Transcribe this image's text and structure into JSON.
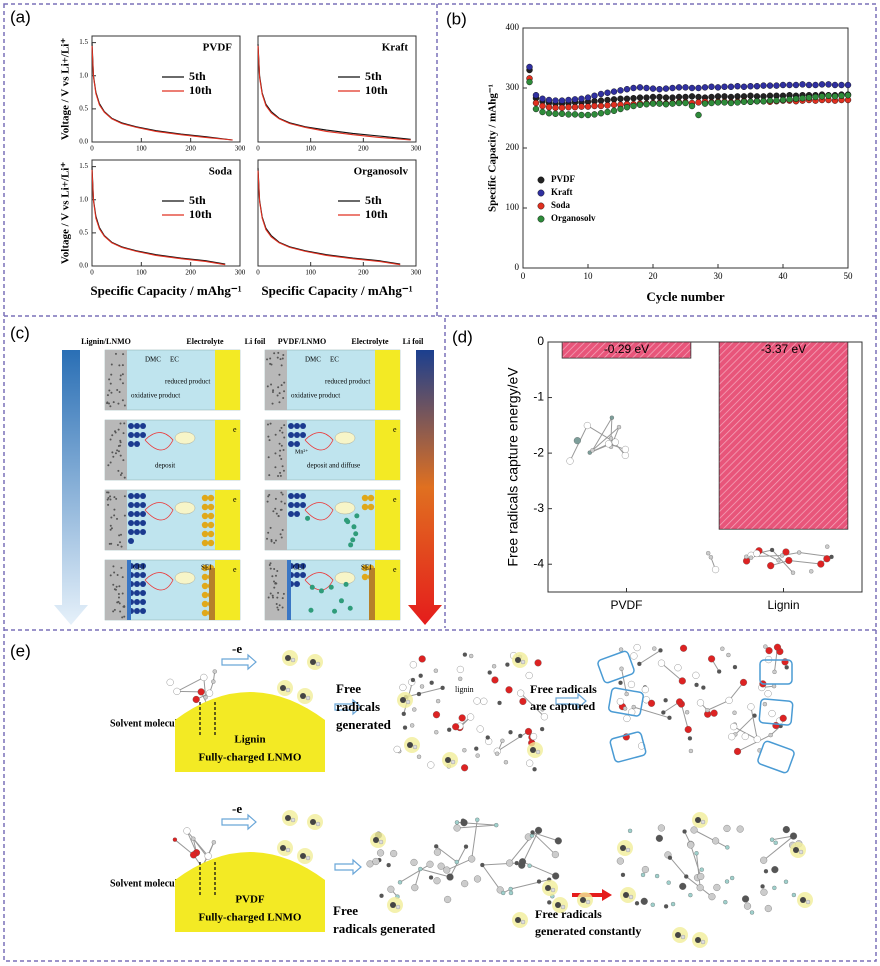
{
  "panel_labels": [
    "(a)",
    "(b)",
    "(c)",
    "(d)",
    "(e)"
  ],
  "chart_data": [
    {
      "type": "line",
      "title": "PVDF",
      "x": [
        0,
        3,
        8,
        15,
        25,
        40,
        60,
        90,
        130,
        180,
        230,
        285
      ],
      "series": [
        {
          "name": "5th",
          "color": "#111111",
          "values": [
            1.5,
            1.0,
            0.75,
            0.58,
            0.46,
            0.36,
            0.29,
            0.23,
            0.17,
            0.12,
            0.08,
            0.03
          ]
        },
        {
          "name": "10th",
          "color": "#e03020",
          "values": [
            1.45,
            0.98,
            0.73,
            0.56,
            0.45,
            0.35,
            0.28,
            0.22,
            0.16,
            0.11,
            0.07,
            0.03
          ]
        }
      ],
      "xlim": [
        0,
        300
      ],
      "ylim": [
        0,
        1.6
      ],
      "xticks": [
        0,
        100,
        200,
        300
      ],
      "yticks": [
        {
          "value": 0,
          "label": "0.0"
        },
        {
          "value": 0.5,
          "label": "0.5"
        },
        {
          "value": 1,
          "label": "1.0"
        },
        {
          "value": 1.5,
          "label": "1.5"
        }
      ],
      "ylabel": "Voltage / V vs Li+/Li⁺",
      "legend": "center right"
    },
    {
      "type": "line",
      "title": "Kraft",
      "x": [
        0,
        3,
        8,
        15,
        25,
        40,
        60,
        90,
        130,
        180,
        230,
        290
      ],
      "series": [
        {
          "name": "5th",
          "color": "#111111",
          "values": [
            1.48,
            1.0,
            0.74,
            0.57,
            0.46,
            0.36,
            0.29,
            0.23,
            0.18,
            0.13,
            0.09,
            0.04
          ]
        },
        {
          "name": "10th",
          "color": "#e03020",
          "values": [
            1.45,
            0.97,
            0.72,
            0.55,
            0.44,
            0.35,
            0.28,
            0.22,
            0.16,
            0.11,
            0.07,
            0.03
          ]
        }
      ],
      "xlim": [
        0,
        300
      ],
      "ylim": [
        0,
        1.6
      ],
      "xticks": [
        0,
        100,
        200,
        300
      ],
      "legend": "center right"
    },
    {
      "type": "line",
      "title": "Soda",
      "x": [
        0,
        3,
        8,
        15,
        25,
        40,
        60,
        90,
        130,
        180,
        230,
        270
      ],
      "series": [
        {
          "name": "5th",
          "color": "#111111",
          "values": [
            1.5,
            1.0,
            0.75,
            0.58,
            0.46,
            0.36,
            0.29,
            0.23,
            0.17,
            0.12,
            0.08,
            0.03
          ]
        },
        {
          "name": "10th",
          "color": "#e03020",
          "values": [
            1.45,
            0.98,
            0.72,
            0.56,
            0.45,
            0.35,
            0.28,
            0.22,
            0.16,
            0.11,
            0.07,
            0.02
          ]
        }
      ],
      "xlim": [
        0,
        300
      ],
      "ylim": [
        0,
        1.6
      ],
      "xticks": [
        0,
        100,
        200,
        300
      ],
      "yticks": [
        {
          "value": 0,
          "label": "0.0"
        },
        {
          "value": 0.5,
          "label": "0.5"
        },
        {
          "value": 1,
          "label": "1.0"
        },
        {
          "value": 1.5,
          "label": "1.5"
        }
      ],
      "xlabel": "Specific Capacity / mAhg⁻¹",
      "ylabel": "Voltage / V vs Li+/Li⁺",
      "legend": "center right"
    },
    {
      "type": "line",
      "title": "Organosolv",
      "x": [
        0,
        3,
        8,
        15,
        25,
        40,
        60,
        90,
        130,
        180,
        230,
        270
      ],
      "series": [
        {
          "name": "5th",
          "color": "#111111",
          "values": [
            1.48,
            0.99,
            0.74,
            0.57,
            0.46,
            0.36,
            0.29,
            0.23,
            0.17,
            0.12,
            0.08,
            0.03
          ]
        },
        {
          "name": "10th",
          "color": "#e03020",
          "values": [
            1.44,
            0.97,
            0.72,
            0.55,
            0.44,
            0.35,
            0.28,
            0.22,
            0.16,
            0.11,
            0.07,
            0.02
          ]
        }
      ],
      "xlim": [
        0,
        300
      ],
      "ylim": [
        0,
        1.6
      ],
      "xticks": [
        0,
        100,
        200,
        300
      ],
      "xlabel": "Specific Capacity / mAhg⁻¹",
      "legend": "center right"
    },
    {
      "type": "scatter",
      "x": [
        1,
        2,
        3,
        4,
        5,
        6,
        7,
        8,
        9,
        10,
        11,
        12,
        13,
        14,
        15,
        16,
        17,
        18,
        19,
        20,
        21,
        22,
        23,
        24,
        25,
        26,
        27,
        28,
        29,
        30,
        31,
        32,
        33,
        34,
        35,
        36,
        37,
        38,
        39,
        40,
        41,
        42,
        43,
        44,
        45,
        46,
        47,
        48,
        49,
        50
      ],
      "series": [
        {
          "name": "PVDF",
          "color": "#222222",
          "values": [
            330,
            283,
            278,
            275,
            274,
            274,
            275,
            276,
            276,
            277,
            278,
            279,
            280,
            281,
            282,
            282,
            283,
            284,
            284,
            285,
            285,
            284,
            284,
            285,
            285,
            286,
            285,
            284,
            285,
            286,
            286,
            285,
            286,
            286,
            287,
            286,
            286,
            287,
            287,
            287,
            288,
            287,
            288,
            288,
            288,
            289,
            288,
            288,
            289,
            289
          ]
        },
        {
          "name": "Kraft",
          "color": "#3030a0",
          "values": [
            335,
            288,
            282,
            280,
            279,
            279,
            280,
            281,
            282,
            284,
            287,
            290,
            292,
            294,
            296,
            298,
            300,
            301,
            300,
            299,
            298,
            299,
            300,
            301,
            301,
            300,
            300,
            301,
            302,
            301,
            302,
            302,
            303,
            302,
            303,
            303,
            304,
            304,
            304,
            305,
            305,
            305,
            306,
            305,
            305,
            306,
            306,
            305,
            305,
            305
          ]
        },
        {
          "name": "Soda",
          "color": "#e03020",
          "values": [
            316,
            275,
            270,
            268,
            267,
            267,
            268,
            268,
            269,
            269,
            270,
            270,
            271,
            272,
            272,
            273,
            273,
            274,
            274,
            275,
            275,
            274,
            275,
            276,
            276,
            275,
            276,
            277,
            276,
            277,
            277,
            276,
            277,
            278,
            277,
            278,
            278,
            277,
            278,
            279,
            279,
            278,
            279,
            280,
            279,
            280,
            280,
            279,
            280,
            280
          ]
        },
        {
          "name": "Organosolv",
          "color": "#2e8b3a",
          "values": [
            310,
            265,
            260,
            258,
            257,
            257,
            256,
            256,
            255,
            255,
            256,
            258,
            260,
            262,
            265,
            268,
            270,
            272,
            273,
            274,
            274,
            273,
            274,
            275,
            275,
            270,
            255,
            274,
            275,
            276,
            276,
            275,
            276,
            277,
            277,
            278,
            278,
            279,
            279,
            280,
            281,
            282,
            283,
            284,
            285,
            286,
            287,
            286,
            287,
            288
          ]
        }
      ],
      "xlim": [
        0,
        50
      ],
      "ylim": [
        0,
        400
      ],
      "xticks": [
        0,
        10,
        20,
        30,
        40,
        50
      ],
      "yticks": [
        0,
        100,
        200,
        300,
        400
      ],
      "xlabel": "Cycle number",
      "ylabel": "Specific Capacity / mAhg⁻¹",
      "legend": "center left"
    },
    {
      "type": "bar",
      "categories": [
        "PVDF",
        "Lignin"
      ],
      "values": [
        -0.29,
        -3.37
      ],
      "value_labels": [
        "-0.29 eV",
        "-3.37 eV"
      ],
      "color": "#e8557a",
      "ylim": [
        -4.5,
        0
      ],
      "yticks": [
        0,
        -1,
        -2,
        -3,
        -4
      ],
      "ylabel": "Free radicals capture energy/eV"
    }
  ],
  "panel_c": {
    "headers_left": [
      "Lignin/LNMO",
      "Electrolyte",
      "Li foil"
    ],
    "headers_right": [
      "PVDF/LNMO",
      "Electrolyte",
      "Li foil"
    ],
    "dmc": "DMC",
    "ec": "EC",
    "reduced": "reduced product",
    "oxidative": "oxidative product",
    "deposit": "deposit",
    "mn": "Mn²⁺",
    "deposit_diffuse": "deposit and diffuse",
    "cei": "CEI",
    "sei": "SEI",
    "electron": "e"
  },
  "panel_e": {
    "top": {
      "oxidation": "-e",
      "solvent": "Solvent molecule",
      "electrode": [
        "Lignin",
        "Fully-charged LNMO"
      ],
      "generated": [
        "Free",
        "radicals",
        "generated"
      ],
      "cluster_label": "lignin",
      "captured": [
        "Free radicals",
        "are captured"
      ]
    },
    "bottom": {
      "oxidation": "-e",
      "solvent": "Solvent molecule",
      "electrode": [
        "PVDF",
        "Fully-charged LNMO"
      ],
      "generated": [
        "Free",
        "radicals generated"
      ],
      "constantly": [
        "Free radicals",
        "generated constantly"
      ]
    }
  }
}
